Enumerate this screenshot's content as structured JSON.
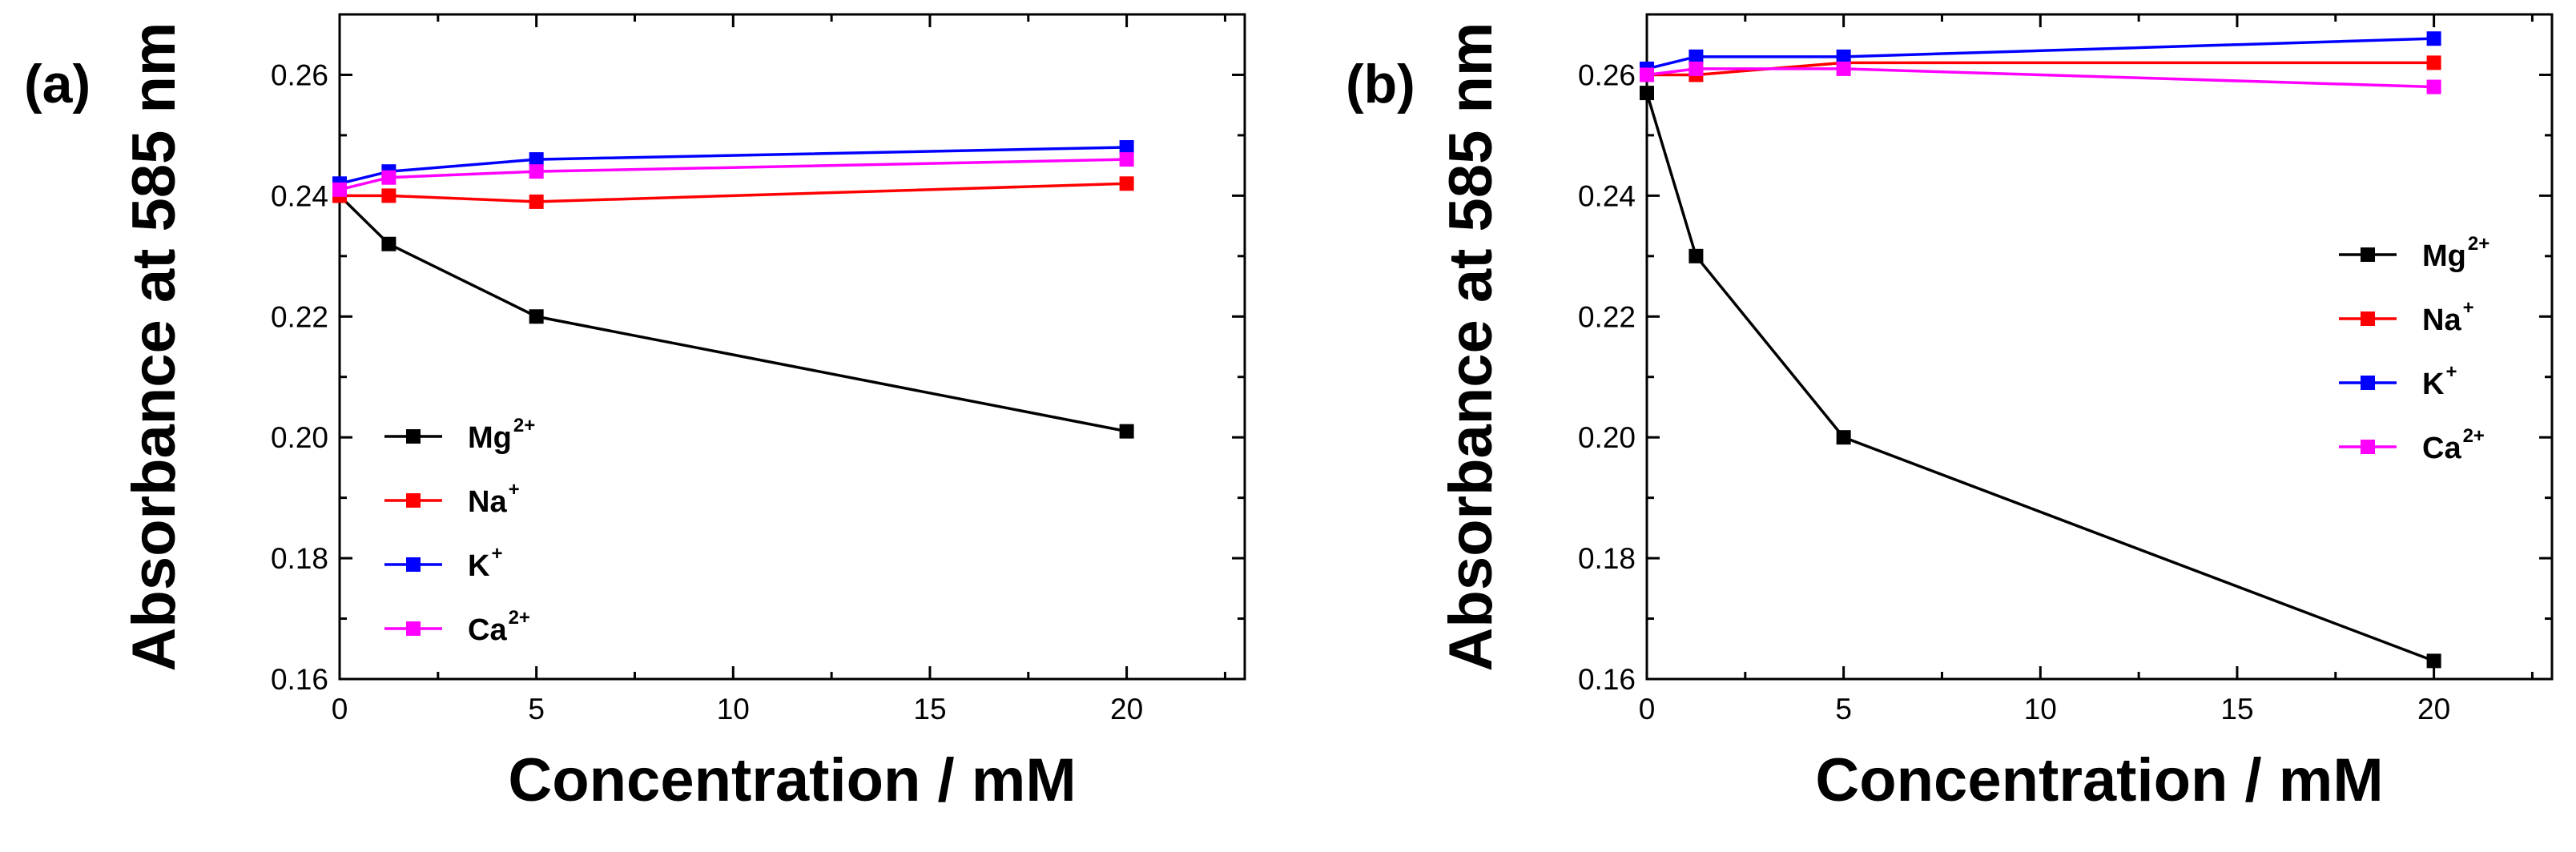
{
  "chart_data": [
    {
      "type": "line",
      "panel_label": "(a)",
      "xlabel": "Concentration / mM",
      "ylabel": "Absorbance at 585 nm",
      "xlim": [
        0,
        23
      ],
      "ylim": [
        0.16,
        0.27
      ],
      "xticks": [
        0,
        5,
        10,
        15,
        20
      ],
      "yticks": [
        0.16,
        0.18,
        0.2,
        0.22,
        0.24,
        0.26
      ],
      "x": [
        0,
        1.25,
        5,
        20
      ],
      "legend_position": "lower-left",
      "series": [
        {
          "name": "Mg",
          "superscript": "2+",
          "color": "#000000",
          "values": [
            0.24,
            0.232,
            0.22,
            0.201
          ]
        },
        {
          "name": "Na",
          "superscript": "+",
          "color": "#ff0000",
          "values": [
            0.24,
            0.24,
            0.239,
            0.242
          ]
        },
        {
          "name": "K",
          "superscript": "+",
          "color": "#0000ff",
          "values": [
            0.242,
            0.244,
            0.246,
            0.248
          ]
        },
        {
          "name": "Ca",
          "superscript": "2+",
          "color": "#ff00ff",
          "values": [
            0.241,
            0.243,
            0.244,
            0.246
          ]
        }
      ]
    },
    {
      "type": "line",
      "panel_label": "(b)",
      "xlabel": "Concentration / mM",
      "ylabel": "Absorbance at 585 nm",
      "xlim": [
        0,
        23
      ],
      "ylim": [
        0.16,
        0.27
      ],
      "xticks": [
        0,
        5,
        10,
        15,
        20
      ],
      "yticks": [
        0.16,
        0.18,
        0.2,
        0.22,
        0.24,
        0.26
      ],
      "x": [
        0,
        1.25,
        5,
        20
      ],
      "legend_position": "center-right",
      "series": [
        {
          "name": "Mg",
          "superscript": "2+",
          "color": "#000000",
          "values": [
            0.257,
            0.23,
            0.2,
            0.163
          ]
        },
        {
          "name": "Na",
          "superscript": "+",
          "color": "#ff0000",
          "values": [
            0.26,
            0.26,
            0.262,
            0.262
          ]
        },
        {
          "name": "K",
          "superscript": "+",
          "color": "#0000ff",
          "values": [
            0.261,
            0.263,
            0.263,
            0.266
          ]
        },
        {
          "name": "Ca",
          "superscript": "2+",
          "color": "#ff00ff",
          "values": [
            0.26,
            0.261,
            0.261,
            0.258
          ]
        }
      ]
    }
  ]
}
